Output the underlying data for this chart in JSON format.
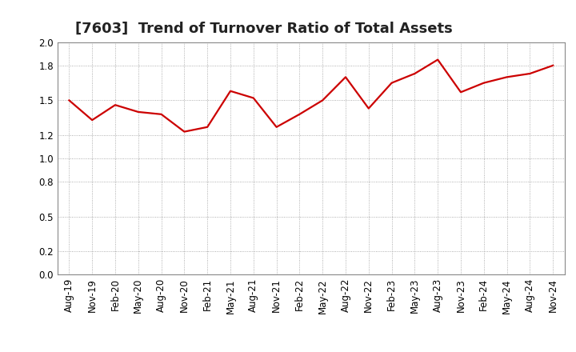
{
  "title": "[7603]  Trend of Turnover Ratio of Total Assets",
  "x_labels": [
    "Aug-19",
    "Nov-19",
    "Feb-20",
    "May-20",
    "Aug-20",
    "Nov-20",
    "Feb-21",
    "May-21",
    "Aug-21",
    "Nov-21",
    "Feb-22",
    "May-22",
    "Aug-22",
    "Nov-22",
    "Feb-23",
    "May-23",
    "Aug-23",
    "Nov-23",
    "Feb-24",
    "May-24",
    "Aug-24",
    "Nov-24"
  ],
  "values": [
    1.5,
    1.33,
    1.46,
    1.4,
    1.38,
    1.23,
    1.27,
    1.58,
    1.52,
    1.27,
    1.38,
    1.5,
    1.7,
    1.43,
    1.65,
    1.73,
    1.85,
    1.57,
    1.65,
    1.7,
    1.73,
    1.8
  ],
  "line_color": "#cc0000",
  "background_color": "#ffffff",
  "grid_color": "#999999",
  "ylim": [
    0.0,
    2.0
  ],
  "yticks": [
    0.0,
    0.2,
    0.5,
    0.8,
    1.0,
    1.2,
    1.5,
    1.8,
    2.0
  ],
  "title_fontsize": 13,
  "tick_fontsize": 8.5,
  "line_width": 1.6
}
